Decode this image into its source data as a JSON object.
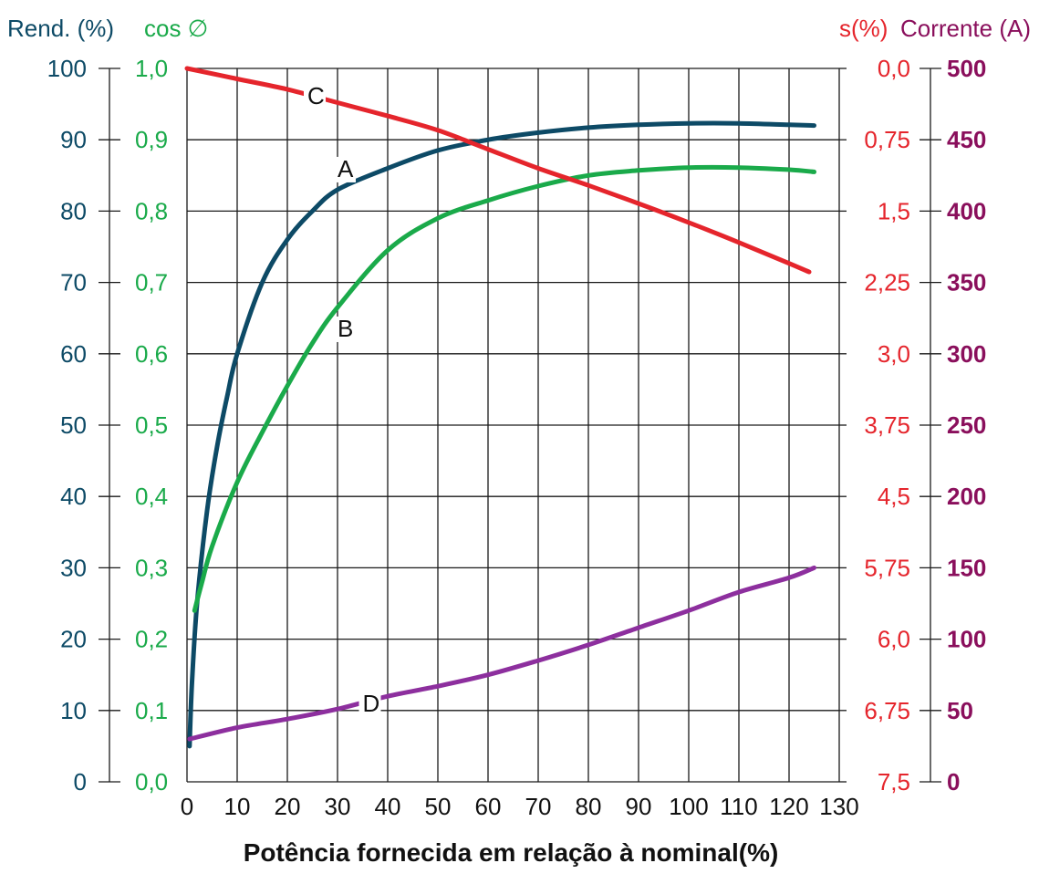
{
  "chart_data": {
    "type": "line",
    "xlabel": "Potência fornecida em relação à nominal(%)",
    "x_ticks": [
      "0",
      "10",
      "20",
      "30",
      "40",
      "50",
      "60",
      "70",
      "80",
      "90",
      "100",
      "110",
      "120",
      "130"
    ],
    "xlim": [
      0,
      130
    ],
    "grid": true,
    "axes": {
      "rend": {
        "title": "Rend. (%)",
        "ticks": [
          "0",
          "10",
          "20",
          "30",
          "40",
          "50",
          "60",
          "70",
          "80",
          "90",
          "100"
        ],
        "range": [
          0,
          100
        ],
        "color": "#0d4a66"
      },
      "cos": {
        "title": "cos ∅",
        "ticks": [
          "0,0",
          "0,1",
          "0,2",
          "0,3",
          "0,4",
          "0,5",
          "0,6",
          "0,7",
          "0,8",
          "0,9",
          "1,0"
        ],
        "range": [
          0,
          1.0
        ],
        "color": "#1aaa4a"
      },
      "slip": {
        "title": "s(%)",
        "ticks": [
          "7,5",
          "6,75",
          "6,0",
          "5,75",
          "4,5",
          "3,75",
          "3,0",
          "2,25",
          "1,5",
          "0,75",
          "0,0"
        ],
        "range": [
          7.5,
          0.0
        ],
        "inverted": true,
        "color": "#e5252c"
      },
      "current": {
        "title": "Corrente (A)",
        "ticks": [
          "0",
          "50",
          "100",
          "150",
          "200",
          "250",
          "300",
          "350",
          "400",
          "450",
          "500"
        ],
        "range": [
          0,
          500
        ],
        "color": "#8a0f5c"
      }
    },
    "series": [
      {
        "label": "A",
        "axis": "rend",
        "color": "#0d4a66",
        "x": [
          0.5,
          1,
          2,
          4,
          6,
          8,
          10,
          15,
          20,
          25,
          30,
          40,
          50,
          60,
          70,
          80,
          90,
          100,
          110,
          120,
          125
        ],
        "y": [
          5,
          14,
          25,
          38,
          47,
          54,
          60,
          70,
          76,
          80,
          83,
          86,
          88.5,
          90,
          91,
          91.7,
          92.1,
          92.3,
          92.3,
          92.1,
          92
        ]
      },
      {
        "label": "B",
        "axis": "cos",
        "color": "#1aaa4a",
        "x": [
          1.5,
          3,
          5,
          10,
          15,
          20,
          25,
          30,
          40,
          50,
          60,
          70,
          80,
          90,
          100,
          110,
          120,
          125
        ],
        "y": [
          0.24,
          0.28,
          0.33,
          0.42,
          0.49,
          0.555,
          0.615,
          0.665,
          0.745,
          0.79,
          0.815,
          0.835,
          0.85,
          0.857,
          0.861,
          0.861,
          0.858,
          0.855
        ]
      },
      {
        "label": "C",
        "axis": "slip",
        "color": "#e5252c",
        "x": [
          0,
          10,
          20,
          30,
          40,
          50,
          60,
          70,
          80,
          90,
          100,
          110,
          120,
          124
        ],
        "y": [
          0.0,
          0.11,
          0.22,
          0.36,
          0.5,
          0.65,
          0.85,
          1.05,
          1.23,
          1.42,
          1.62,
          1.83,
          2.05,
          2.14
        ]
      },
      {
        "label": "D",
        "axis": "current",
        "color": "#8d2f9e",
        "x": [
          0.5,
          10,
          20,
          30,
          40,
          50,
          60,
          70,
          80,
          90,
          100,
          110,
          120,
          125
        ],
        "y": [
          30,
          38,
          44,
          51,
          60,
          67,
          75,
          85,
          96,
          108,
          120,
          133,
          143,
          150
        ]
      }
    ]
  }
}
